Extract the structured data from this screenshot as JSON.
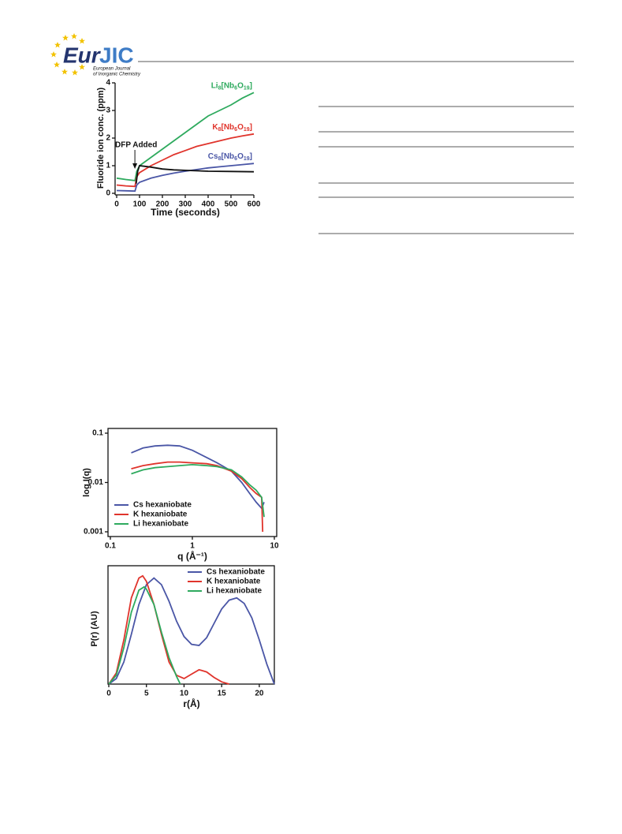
{
  "header": {
    "logo_main": "Eur",
    "logo_accent": "JIC",
    "journal_line1": "European Journal",
    "journal_line2": "of Inorganic Chemistry"
  },
  "chart_data": [
    {
      "type": "line",
      "xlabel": "Time (seconds)",
      "ylabel": "Fluoride ion conc. (ppm)",
      "annotation": "DFP Added",
      "xlim": [
        0,
        600
      ],
      "ylim": [
        0,
        4
      ],
      "xticks": [
        0,
        100,
        200,
        300,
        400,
        500,
        600
      ],
      "yticks": [
        0,
        1,
        2,
        3,
        4
      ],
      "legend": "inline",
      "frame": false,
      "series": [
        {
          "name": "Li8[Nb6O19]",
          "color": "#2eaa5e",
          "x": [
            0,
            40,
            80,
            88,
            100,
            150,
            200,
            250,
            300,
            350,
            400,
            450,
            500,
            550,
            600
          ],
          "values": [
            0.55,
            0.5,
            0.46,
            0.8,
            1.0,
            1.3,
            1.6,
            1.9,
            2.2,
            2.5,
            2.8,
            3.0,
            3.2,
            3.45,
            3.65
          ]
        },
        {
          "name": "K8[Nb6O19]",
          "color": "#e0342c",
          "x": [
            0,
            40,
            80,
            88,
            100,
            150,
            200,
            250,
            300,
            350,
            400,
            450,
            500,
            550,
            600
          ],
          "values": [
            0.3,
            0.27,
            0.25,
            0.6,
            0.75,
            1.0,
            1.2,
            1.4,
            1.55,
            1.7,
            1.8,
            1.9,
            2.0,
            2.08,
            2.15
          ]
        },
        {
          "name": "Cs8[Nb6O19]",
          "color": "#4a56a6",
          "x": [
            0,
            40,
            80,
            88,
            100,
            150,
            200,
            250,
            300,
            350,
            400,
            450,
            500,
            550,
            600
          ],
          "values": [
            0.1,
            0.09,
            0.08,
            0.3,
            0.4,
            0.55,
            0.65,
            0.73,
            0.8,
            0.86,
            0.92,
            0.96,
            1.0,
            1.04,
            1.08
          ]
        },
        {
          "color": "#111111",
          "x": [
            85,
            92,
            100,
            120,
            150,
            200,
            250,
            300,
            400,
            500,
            600
          ],
          "values": [
            0.35,
            0.8,
            1.0,
            0.98,
            0.95,
            0.88,
            0.85,
            0.83,
            0.8,
            0.79,
            0.78
          ]
        }
      ]
    },
    {
      "type": "line",
      "xlabel": "q (Å⁻¹)",
      "ylabel": "log I(q)",
      "xlog": true,
      "ylog": true,
      "xlim": [
        0.1,
        10
      ],
      "ylim": [
        0.001,
        0.1
      ],
      "xticks": [
        0.1,
        1,
        10
      ],
      "yticks": [
        0.001,
        0.01,
        0.1
      ],
      "legend": "lower left",
      "frame": true,
      "series": [
        {
          "name": "Cs hexaniobate",
          "color": "#4a56a6",
          "x": [
            0.18,
            0.25,
            0.35,
            0.5,
            0.7,
            1,
            1.5,
            2,
            3,
            4,
            5,
            6,
            7,
            7.5
          ],
          "values": [
            0.04,
            0.05,
            0.055,
            0.057,
            0.055,
            0.045,
            0.032,
            0.025,
            0.017,
            0.01,
            0.006,
            0.004,
            0.003,
            0.004
          ]
        },
        {
          "name": "K hexaniobate",
          "color": "#e0342c",
          "x": [
            0.18,
            0.25,
            0.35,
            0.5,
            0.7,
            1,
            1.5,
            2,
            3,
            4,
            5,
            6,
            7,
            7.2
          ],
          "values": [
            0.019,
            0.022,
            0.024,
            0.026,
            0.026,
            0.025,
            0.024,
            0.022,
            0.017,
            0.012,
            0.008,
            0.006,
            0.005,
            0.001
          ]
        },
        {
          "name": "Li hexaniobate",
          "color": "#2eaa5e",
          "x": [
            0.18,
            0.25,
            0.35,
            0.5,
            0.7,
            1,
            1.5,
            2,
            3,
            4,
            5,
            6,
            7,
            7.5
          ],
          "values": [
            0.015,
            0.018,
            0.02,
            0.021,
            0.022,
            0.023,
            0.022,
            0.021,
            0.018,
            0.013,
            0.009,
            0.007,
            0.005,
            0.002
          ]
        }
      ]
    },
    {
      "type": "line",
      "xlabel": "r(Å)",
      "ylabel": "P(r) (AU)",
      "xlim": [
        0,
        22
      ],
      "ylim": [
        0,
        1
      ],
      "xticks": [
        0,
        5,
        10,
        15,
        20
      ],
      "legend": "upper right",
      "frame": true,
      "series": [
        {
          "name": "Cs hexaniobate",
          "color": "#4a56a6",
          "x": [
            0,
            1,
            2,
            3,
            4,
            5,
            6,
            7,
            8,
            9,
            10,
            11,
            12,
            13,
            14,
            15,
            16,
            17,
            18,
            19,
            20,
            21,
            22
          ],
          "values": [
            0,
            0.05,
            0.2,
            0.45,
            0.72,
            0.9,
            0.96,
            0.9,
            0.75,
            0.57,
            0.43,
            0.36,
            0.35,
            0.42,
            0.55,
            0.68,
            0.76,
            0.78,
            0.73,
            0.6,
            0.4,
            0.18,
            0
          ]
        },
        {
          "name": "K hexaniobate",
          "color": "#e0342c",
          "x": [
            0,
            1,
            2,
            3,
            4,
            4.5,
            5,
            6,
            7,
            8,
            9,
            10,
            11,
            12,
            13,
            14,
            15,
            16
          ],
          "values": [
            0,
            0.1,
            0.4,
            0.78,
            0.96,
            0.98,
            0.93,
            0.72,
            0.45,
            0.2,
            0.08,
            0.05,
            0.09,
            0.13,
            0.11,
            0.06,
            0.02,
            0
          ]
        },
        {
          "name": "Li hexaniobate",
          "color": "#2eaa5e",
          "x": [
            0,
            1,
            2,
            3,
            4,
            4.7,
            5,
            6,
            7,
            8,
            9,
            9.5
          ],
          "values": [
            0,
            0.08,
            0.33,
            0.65,
            0.85,
            0.88,
            0.86,
            0.72,
            0.47,
            0.24,
            0.07,
            0
          ]
        }
      ]
    }
  ]
}
